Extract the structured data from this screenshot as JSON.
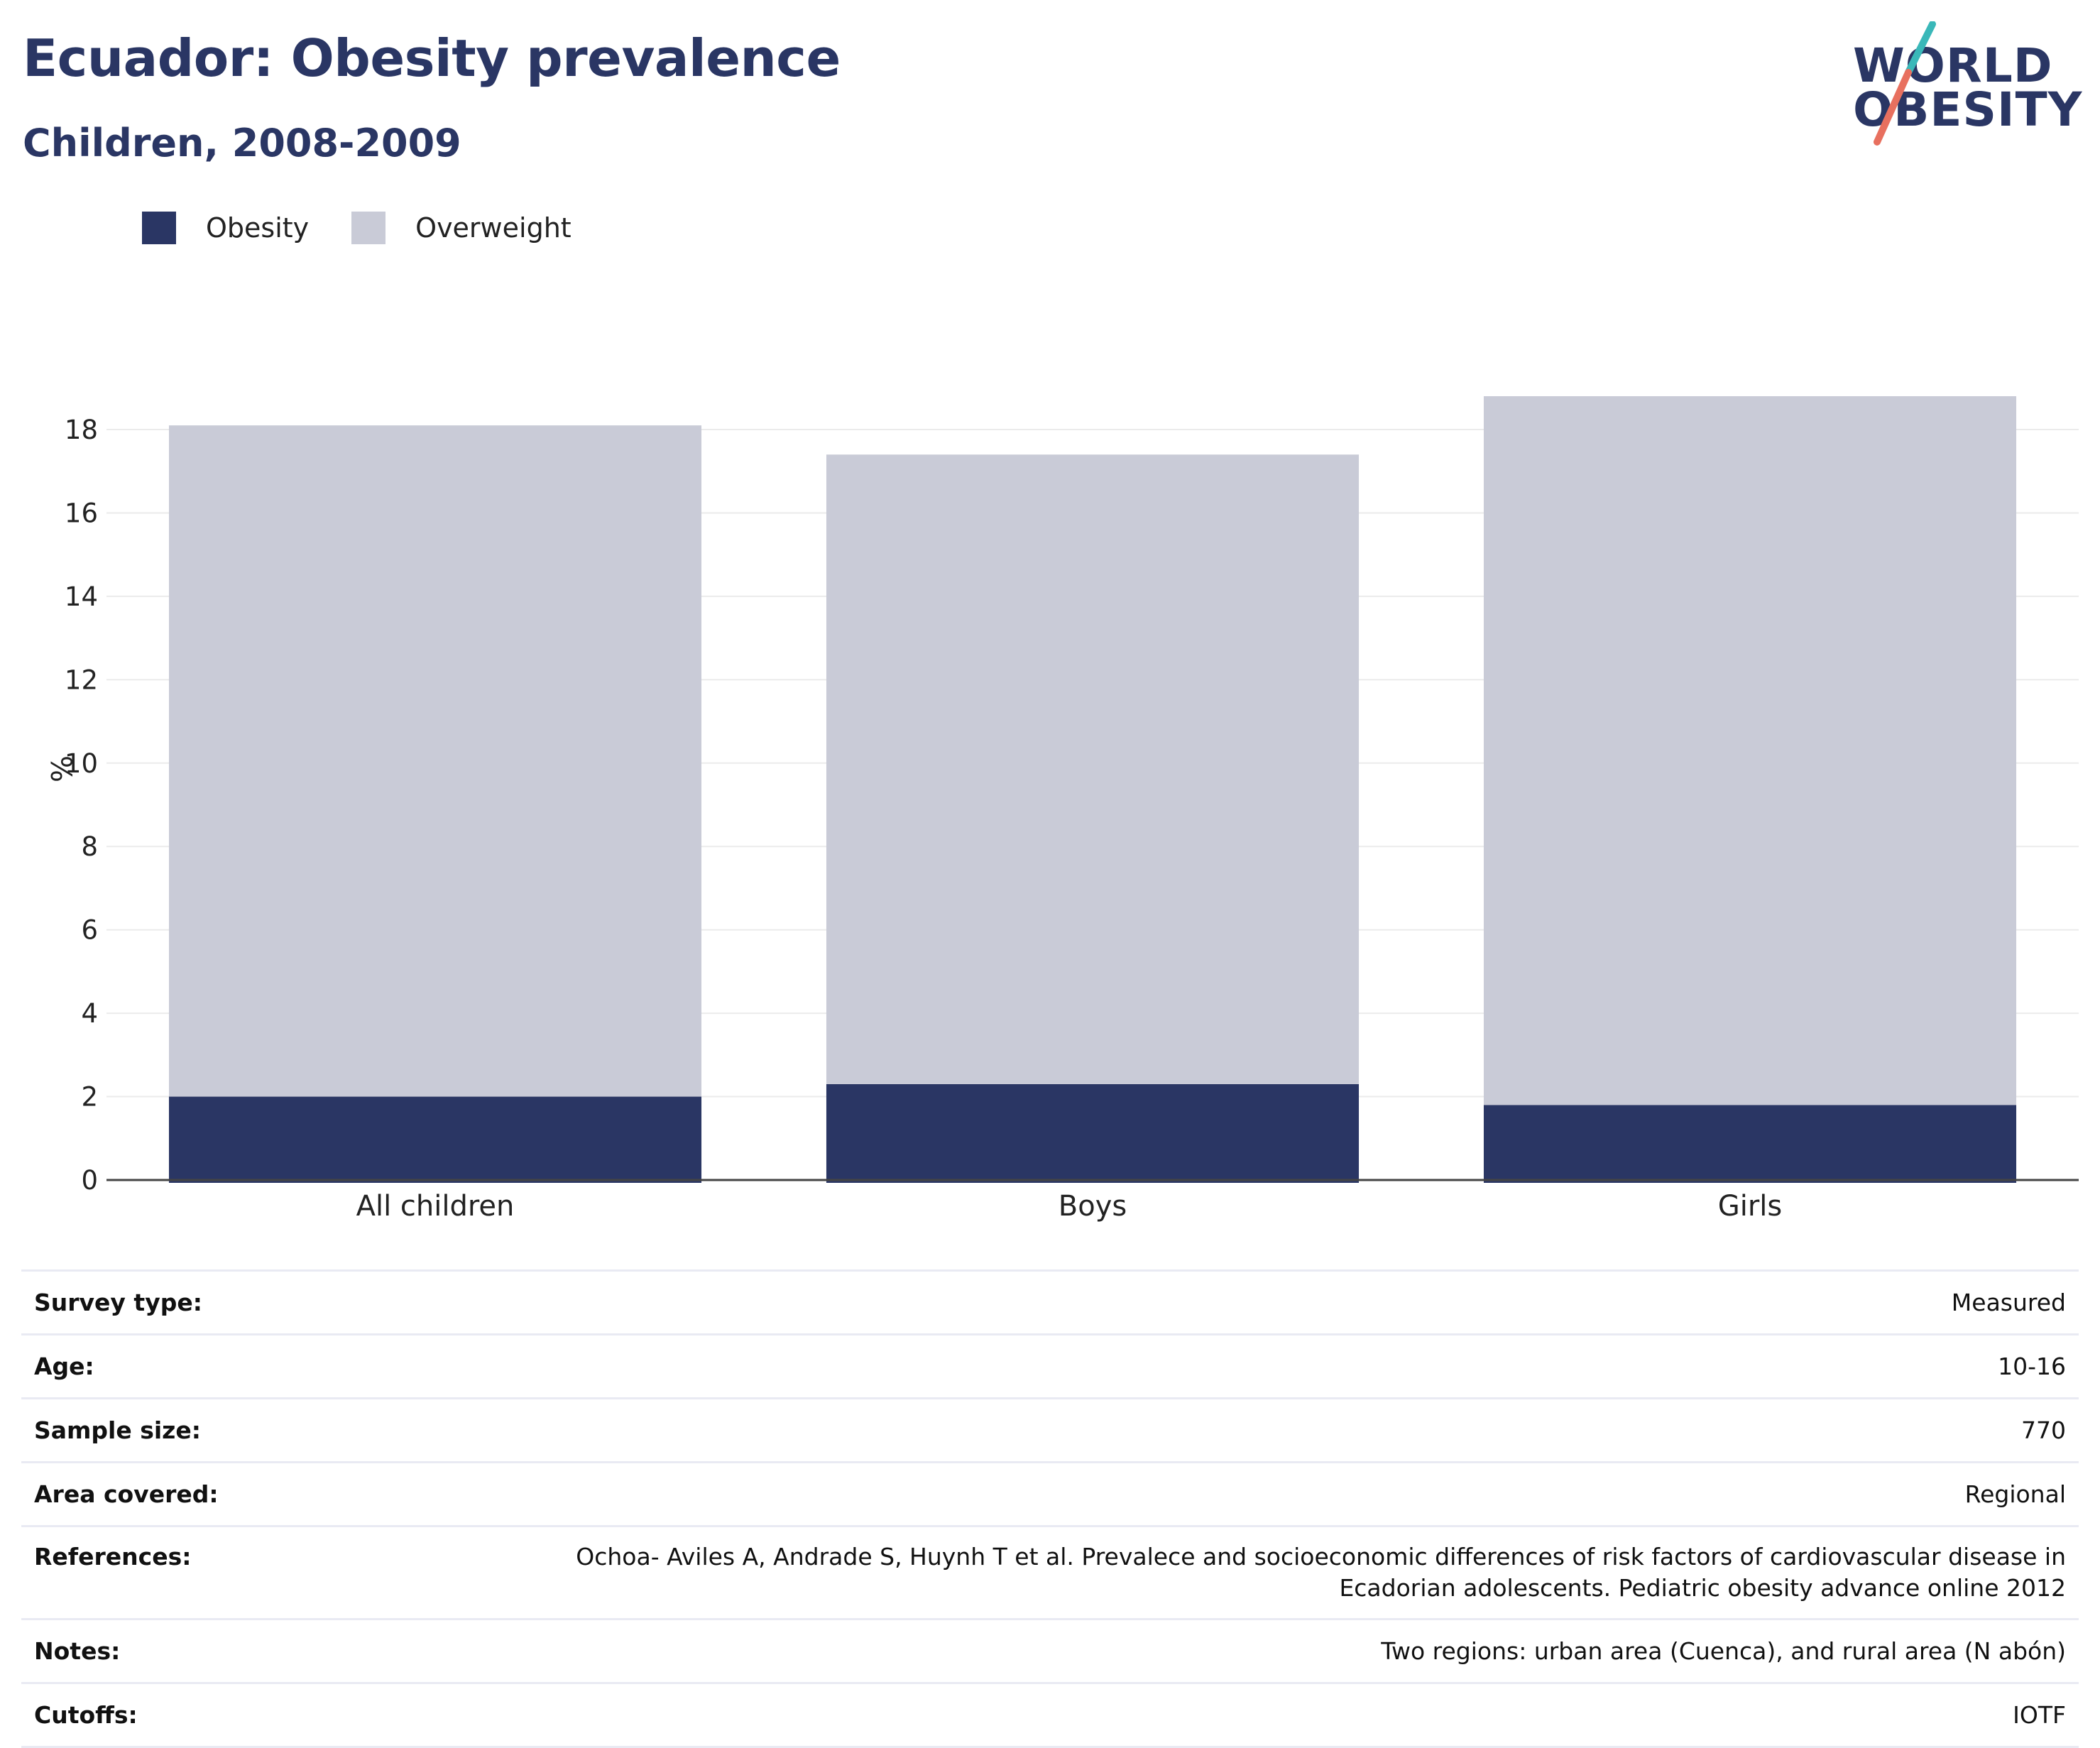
{
  "header": {
    "title": "Ecuador: Obesity prevalence",
    "subtitle": "Children, 2008-2009"
  },
  "logo": {
    "line1": "WORLD",
    "line2": "OBESITY",
    "accent_teal": "#3ab8b9",
    "accent_coral": "#e8705f"
  },
  "legend": {
    "items": [
      {
        "label": "Obesity",
        "color": "#2a3664"
      },
      {
        "label": "Overweight",
        "color": "#c9cbd7"
      }
    ]
  },
  "chart_data": {
    "type": "bar",
    "stacked": true,
    "categories": [
      "All children",
      "Boys",
      "Girls"
    ],
    "series": [
      {
        "name": "Obesity",
        "color": "#2a3664",
        "values": [
          2.0,
          2.3,
          1.8
        ]
      },
      {
        "name": "Overweight",
        "color": "#c9cbd7",
        "values": [
          16.1,
          15.1,
          17.0
        ]
      }
    ],
    "ylabel": "%",
    "xlabel": "",
    "ylim": [
      0,
      18
    ],
    "yticks": [
      0,
      2,
      4,
      6,
      8,
      10,
      12,
      14,
      16,
      18
    ],
    "grid": true,
    "legend_position": "top-left"
  },
  "info_table": [
    {
      "key": "Survey type:",
      "value": "Measured"
    },
    {
      "key": "Age:",
      "value": "10-16"
    },
    {
      "key": "Sample size:",
      "value": "770"
    },
    {
      "key": "Area covered:",
      "value": "Regional"
    },
    {
      "key": "References:",
      "value": "Ochoa- Aviles A, Andrade S, Huynh T et al. Prevalece and socioeconomic differences of risk factors of cardiovascular disease in",
      "value2": "Ecadorian adolescents. Pediatric obesity advance online 2012"
    },
    {
      "key": "Notes:",
      "value": "Two regions: urban area (Cuenca), and rural area (N abón)"
    },
    {
      "key": "Cutoffs:",
      "value": "IOTF"
    }
  ]
}
